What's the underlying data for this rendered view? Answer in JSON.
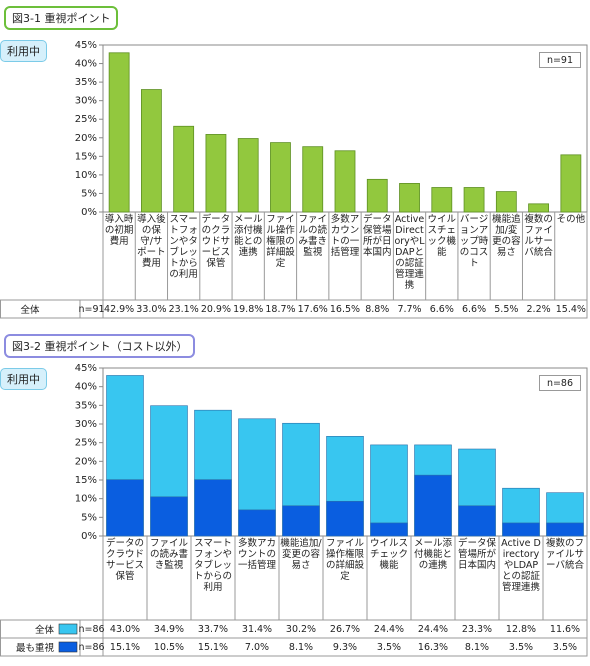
{
  "chart_data": [
    {
      "type": "bar",
      "title": "図3-1 重視ポイント",
      "badge": "利用中",
      "n_label": "n=91",
      "row_label": "全体",
      "categories": [
        "導入時の初期費用",
        "導入後の保守/サポート費用",
        "スマートフォンやタブレットからの利用",
        "データのクラウドサービス保管",
        "メール添付機能との連携",
        "ファイル操作権限の詳細設定",
        "ファイルの読み書き監視",
        "多数アカウントの一括管理",
        "データ保管場所が日本国内",
        "Active DirectoryやLDAPとの認証管理連携",
        "ウイルスチェック機能",
        "バージョンアップ時のコスト",
        "機能追加/変更の容易さ",
        "複数のファイルサーバ統合",
        "その他"
      ],
      "values": [
        42.9,
        33.0,
        23.1,
        20.9,
        19.8,
        18.7,
        17.6,
        16.5,
        8.8,
        7.7,
        6.6,
        6.6,
        5.5,
        2.2,
        15.4
      ],
      "value_labels": [
        "42.9%",
        "33.0%",
        "23.1%",
        "20.9%",
        "19.8%",
        "18.7%",
        "17.6%",
        "16.5%",
        "8.8%",
        "7.7%",
        "6.6%",
        "6.6%",
        "5.5%",
        "2.2%",
        "15.4%"
      ],
      "color": "#92c83e",
      "ylim": [
        0,
        45
      ],
      "yticks": [
        {
          "value": 0,
          "label": "0%"
        },
        {
          "value": 5,
          "label": "5%"
        },
        {
          "value": 10,
          "label": "10%"
        },
        {
          "value": 15,
          "label": "15%"
        },
        {
          "value": 20,
          "label": "20%"
        },
        {
          "value": 25,
          "label": "25%"
        },
        {
          "value": 30,
          "label": "30%"
        },
        {
          "value": 35,
          "label": "35%"
        },
        {
          "value": 40,
          "label": "40%"
        },
        {
          "value": 45,
          "label": "45%"
        }
      ]
    },
    {
      "type": "overlay_bar",
      "title": "図3-2 重視ポイント（コスト以外）",
      "badge": "利用中",
      "n_label": "n=86",
      "categories": [
        "データのクラウドサービス保管",
        "ファイルの読み書き監視",
        "スマートフォンやタブレットからの利用",
        "多数アカウントの一括管理",
        "機能追加/変更の容易さ",
        "ファイル操作権限の詳細設定",
        "ウイルスチェック機能",
        "メール添付機能との連携",
        "データ保管場所が日本国内",
        "Active DirectoryやLDAPとの認証管理連携",
        "複数のファイルサーバ統合"
      ],
      "series": [
        {
          "name": "全体",
          "color": "#38c6f0",
          "n_label": "n=86",
          "values": [
            43.0,
            34.9,
            33.7,
            31.4,
            30.2,
            26.7,
            24.4,
            24.4,
            23.3,
            12.8,
            11.6
          ],
          "value_labels": [
            "43.0%",
            "34.9%",
            "33.7%",
            "31.4%",
            "30.2%",
            "26.7%",
            "24.4%",
            "24.4%",
            "23.3%",
            "12.8%",
            "11.6%"
          ]
        },
        {
          "name": "最も重視",
          "color": "#0a5ee0",
          "n_label": "n=86",
          "values": [
            15.1,
            10.5,
            15.1,
            7.0,
            8.1,
            9.3,
            3.5,
            16.3,
            8.1,
            3.5,
            3.5
          ],
          "value_labels": [
            "15.1%",
            "10.5%",
            "15.1%",
            "7.0%",
            "8.1%",
            "9.3%",
            "3.5%",
            "16.3%",
            "8.1%",
            "3.5%",
            "3.5%"
          ]
        }
      ],
      "ylim": [
        0,
        45
      ],
      "yticks": [
        {
          "value": 0,
          "label": "0%"
        },
        {
          "value": 5,
          "label": "5%"
        },
        {
          "value": 10,
          "label": "10%"
        },
        {
          "value": 15,
          "label": "15%"
        },
        {
          "value": 20,
          "label": "20%"
        },
        {
          "value": 25,
          "label": "25%"
        },
        {
          "value": 30,
          "label": "30%"
        },
        {
          "value": 35,
          "label": "35%"
        },
        {
          "value": 40,
          "label": "40%"
        },
        {
          "value": 45,
          "label": "45%"
        }
      ]
    }
  ]
}
